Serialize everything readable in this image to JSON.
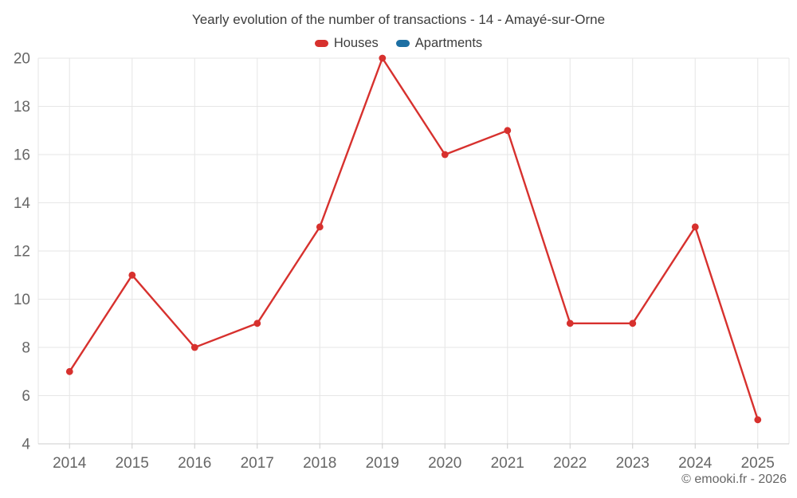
{
  "chart": {
    "title": "Yearly evolution of the number of transactions - 14 - Amayé-sur-Orne",
    "credit": "© emooki.fr - 2026",
    "background": "#ffffff"
  },
  "colors": {
    "grid": "#e6e6e6",
    "axis_line": "#cccccc",
    "tick": "#cccccc",
    "axis_label": "#666666",
    "title_text": "#3d3d3d",
    "legend_text": "#3d3d3d",
    "credit_text": "#666666"
  },
  "chart_data": {
    "type": "line",
    "title": "Yearly evolution of the number of transactions - 14 - Amayé-sur-Orne",
    "xlabel": "",
    "ylabel": "",
    "categories": [
      "2014",
      "2015",
      "2016",
      "2017",
      "2018",
      "2019",
      "2020",
      "2021",
      "2022",
      "2023",
      "2024",
      "2025"
    ],
    "series": [
      {
        "name": "Houses",
        "color": "#d7312e",
        "values": [
          7,
          11,
          8,
          9,
          13,
          20,
          16,
          17,
          9,
          9,
          13,
          5
        ]
      },
      {
        "name": "Apartments",
        "color": "#1d6fa3",
        "values": []
      }
    ],
    "ylim": [
      4,
      20
    ],
    "y_ticks": [
      4,
      6,
      8,
      10,
      12,
      14,
      16,
      18,
      20
    ],
    "grid": true,
    "legend_position": "top",
    "marker": "circle"
  }
}
